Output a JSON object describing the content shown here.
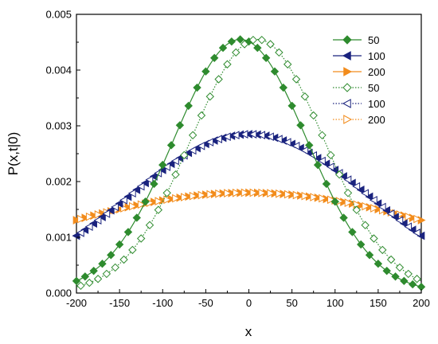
{
  "chart_data": {
    "type": "line",
    "xlabel": "x",
    "ylabel": "P(x,t|0)",
    "xlim": [
      -200,
      200
    ],
    "ylim": [
      0,
      0.005
    ],
    "x_ticks": [
      "-200",
      "-150",
      "-100",
      "-50",
      "0",
      "50",
      "100",
      "150",
      "200"
    ],
    "y_ticks": [
      "0.000",
      "0.001",
      "0.002",
      "0.003",
      "0.004",
      "0.005"
    ],
    "grid": false,
    "legend_position": "top-right",
    "series": [
      {
        "name": "50",
        "color": "#2e8b2e",
        "marker": "diamond",
        "filled": true,
        "line": "solid",
        "peak": 0.00455,
        "sigma": 77,
        "center": -10
      },
      {
        "name": "100",
        "color": "#1a237e",
        "marker": "triangle-left",
        "filled": true,
        "line": "solid",
        "peak": 0.00285,
        "sigma": 140,
        "center": 0
      },
      {
        "name": "200",
        "color": "#f28c1c",
        "marker": "triangle-right",
        "filled": true,
        "line": "solid",
        "peak": 0.0018,
        "sigma": 250,
        "center": 0
      },
      {
        "name": "50",
        "color": "#2e8b2e",
        "marker": "diamond",
        "filled": false,
        "line": "dotted",
        "peak": 0.00455,
        "sigma": 77,
        "center": 10
      },
      {
        "name": "100",
        "color": "#1a237e",
        "marker": "triangle-left",
        "filled": false,
        "line": "dotted",
        "peak": 0.00285,
        "sigma": 140,
        "center": 0
      },
      {
        "name": "200",
        "color": "#f28c1c",
        "marker": "triangle-right",
        "filled": false,
        "line": "dotted",
        "peak": 0.0018,
        "sigma": 250,
        "center": 0
      }
    ]
  }
}
